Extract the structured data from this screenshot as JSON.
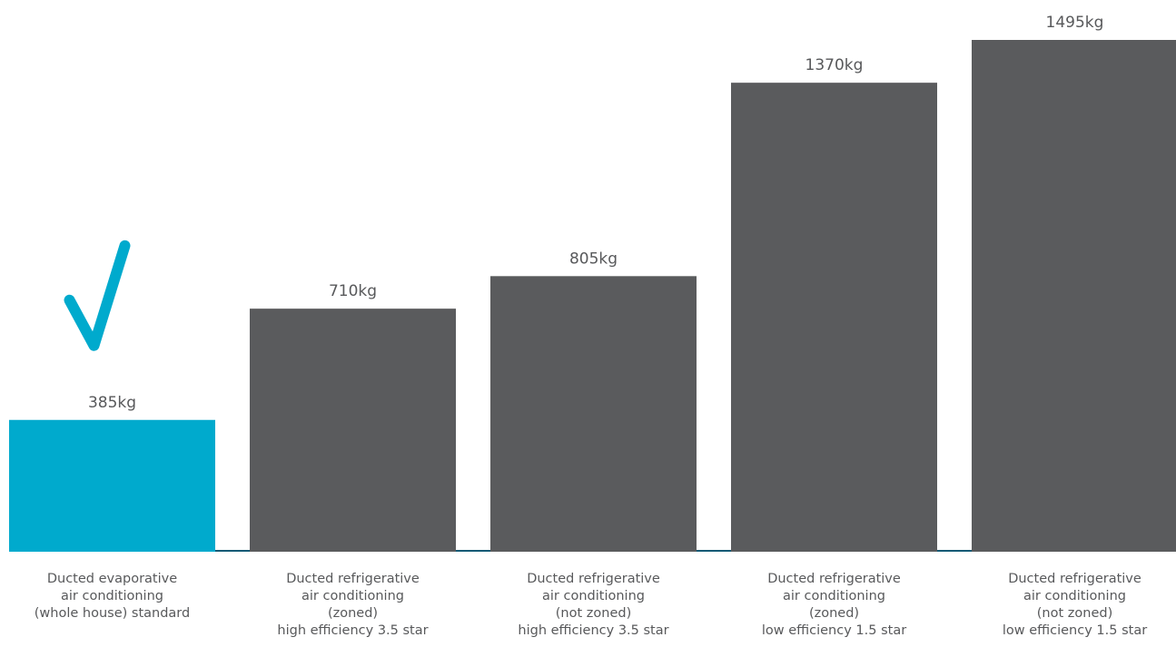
{
  "chart_data": {
    "type": "bar",
    "categories": [
      [
        "Ducted evaporative",
        "air conditioning",
        "(whole house) standard"
      ],
      [
        "Ducted refrigerative",
        "air conditioning",
        "(zoned)",
        "high efficiency 3.5 star"
      ],
      [
        "Ducted refrigerative",
        "air conditioning",
        "(not zoned)",
        "high efficiency 3.5 star"
      ],
      [
        "Ducted refrigerative",
        "air conditioning",
        "(zoned)",
        "low efficiency 1.5 star"
      ],
      [
        "Ducted refrigerative",
        "air conditioning",
        "(not zoned)",
        "low efficiency 1.5 star"
      ]
    ],
    "values": [
      385,
      710,
      805,
      1370,
      1495
    ],
    "value_labels": [
      "385kg",
      "710kg",
      "805kg",
      "1370kg",
      "1495kg"
    ],
    "unit": "kg",
    "ylim": [
      0,
      1495
    ],
    "highlight_index": 0,
    "highlight_icon": "checkmark-icon",
    "colors": {
      "highlight": "#00aacd",
      "bar": "#5a5b5d",
      "baseline": "#0d5a75",
      "text": "#58595b"
    },
    "grid": false,
    "legend": "none"
  }
}
